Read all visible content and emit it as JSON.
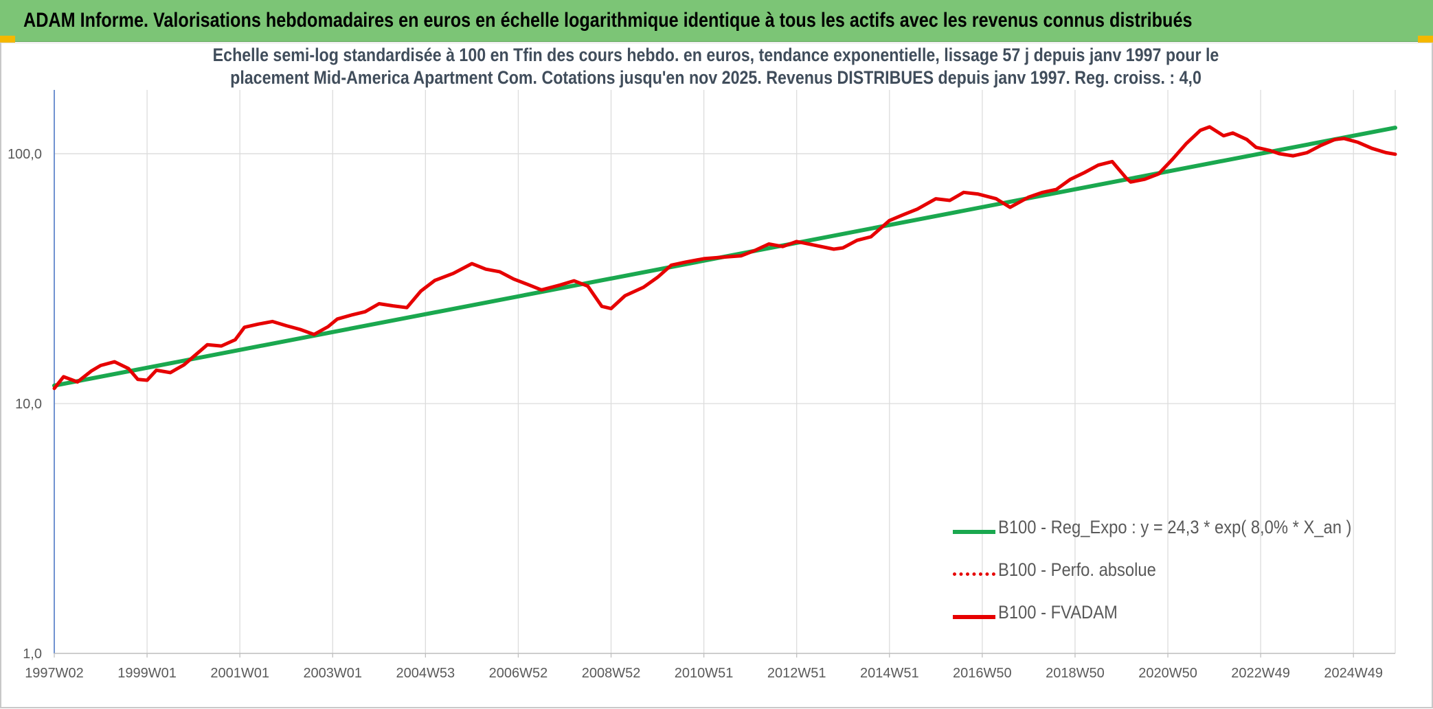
{
  "header": {
    "title": "ADAM Informe. Valorisations hebdomadaires en euros en échelle logarithmique identique à tous les actifs avec les revenus connus distribués"
  },
  "chart": {
    "subtitle_line1": "Echelle semi-log standardisée à 100 en Tfin des cours hebdo. en euros, tendance exponentielle, lissage 57 j depuis janv 1997 pour le",
    "subtitle_line2": "placement Mid-America Apartment Com. Cotations jusqu'en nov 2025. Revenus DISTRIBUES depuis janv 1997. Reg. croiss. : 4,0"
  },
  "colors": {
    "banner": "#7cc576",
    "regression": "#1aa84f",
    "fvadam": "#e60000",
    "perfo": "#e60000",
    "grid": "#dcdcdc",
    "axis": "#4472c4"
  },
  "chart_data": {
    "type": "line",
    "yscale": "log",
    "ylim": [
      1,
      180
    ],
    "y_ticks": [
      1,
      10,
      100
    ],
    "y_tick_labels": [
      "1,0",
      "10,0",
      "100,0"
    ],
    "x_range": [
      1997.0,
      2025.9
    ],
    "x_ticks": [
      1997.0,
      1999.0,
      2001.0,
      2003.0,
      2005.0,
      2007.0,
      2009.0,
      2011.0,
      2013.0,
      2015.0,
      2017.0,
      2019.0,
      2021.0,
      2023.0,
      2025.0
    ],
    "x_tick_labels": [
      "1997W02",
      "1999W01",
      "2001W01",
      "2003W01",
      "2004W53",
      "2006W52",
      "2008W52",
      "2010W51",
      "2012W51",
      "2014W51",
      "2016W50",
      "2018W50",
      "2020W50",
      "2022W49",
      "2024W49"
    ],
    "legend_position": "bottom-right",
    "grid": true,
    "series": [
      {
        "name": "B100 - Reg_Expo : y = 24,3 * exp( 8,0% *  X_an )",
        "style": "solid",
        "x": [
          1997.0,
          2025.9
        ],
        "y": [
          11.8,
          127
        ]
      },
      {
        "name": "B100 - Perfo. absolue",
        "style": "dotted",
        "x": [],
        "y": []
      },
      {
        "name": "B100 - FVADAM",
        "style": "solid",
        "x": [
          1997.0,
          1997.2,
          1997.5,
          1997.8,
          1998.0,
          1998.3,
          1998.6,
          1998.8,
          1999.0,
          1999.2,
          1999.5,
          1999.8,
          2000.0,
          2000.3,
          2000.6,
          2000.9,
          2001.1,
          2001.4,
          2001.7,
          2002.0,
          2002.3,
          2002.6,
          2002.9,
          2003.1,
          2003.4,
          2003.7,
          2004.0,
          2004.3,
          2004.6,
          2004.9,
          2005.2,
          2005.6,
          2006.0,
          2006.3,
          2006.6,
          2006.9,
          2007.2,
          2007.5,
          2007.9,
          2008.2,
          2008.5,
          2008.8,
          2009.0,
          2009.3,
          2009.7,
          2010.0,
          2010.3,
          2010.6,
          2011.0,
          2011.4,
          2011.8,
          2012.1,
          2012.4,
          2012.7,
          2013.0,
          2013.4,
          2013.8,
          2014.0,
          2014.3,
          2014.6,
          2015.0,
          2015.3,
          2015.6,
          2016.0,
          2016.3,
          2016.6,
          2016.9,
          2017.3,
          2017.6,
          2018.0,
          2018.3,
          2018.6,
          2018.9,
          2019.2,
          2019.5,
          2019.8,
          2020.1,
          2020.2,
          2020.5,
          2020.8,
          2021.1,
          2021.4,
          2021.7,
          2021.9,
          2022.2,
          2022.4,
          2022.7,
          2022.9,
          2023.2,
          2023.4,
          2023.7,
          2024.0,
          2024.3,
          2024.6,
          2024.8,
          2025.1,
          2025.4,
          2025.7,
          2025.9
        ],
        "y": [
          11.5,
          12.8,
          12.2,
          13.5,
          14.2,
          14.7,
          13.8,
          12.5,
          12.4,
          13.6,
          13.3,
          14.3,
          15.4,
          17.2,
          17.0,
          18.0,
          20.2,
          20.8,
          21.3,
          20.5,
          19.8,
          18.9,
          20.3,
          21.8,
          22.6,
          23.3,
          25.1,
          24.6,
          24.2,
          28.2,
          31.1,
          33.2,
          36.3,
          34.5,
          33.7,
          31.5,
          30.0,
          28.5,
          29.8,
          31.0,
          29.5,
          24.5,
          24.0,
          27.0,
          29.2,
          32.0,
          35.8,
          36.8,
          38.0,
          38.5,
          39.0,
          41.0,
          43.5,
          42.5,
          44.5,
          43.0,
          41.5,
          42.0,
          45.0,
          46.5,
          54.0,
          57.0,
          60.0,
          66.0,
          65.0,
          70.0,
          69.0,
          66.0,
          61.0,
          67.0,
          70.0,
          72.0,
          79.0,
          84.0,
          90.0,
          93.0,
          80.0,
          77.0,
          79.0,
          83.0,
          95.0,
          110.0,
          124.0,
          128.0,
          118.0,
          121.0,
          114.0,
          106.0,
          103.0,
          100.0,
          98.0,
          101.0,
          108.0,
          114.0,
          115.0,
          111.0,
          105.0,
          101.0,
          99.5
        ]
      }
    ]
  }
}
